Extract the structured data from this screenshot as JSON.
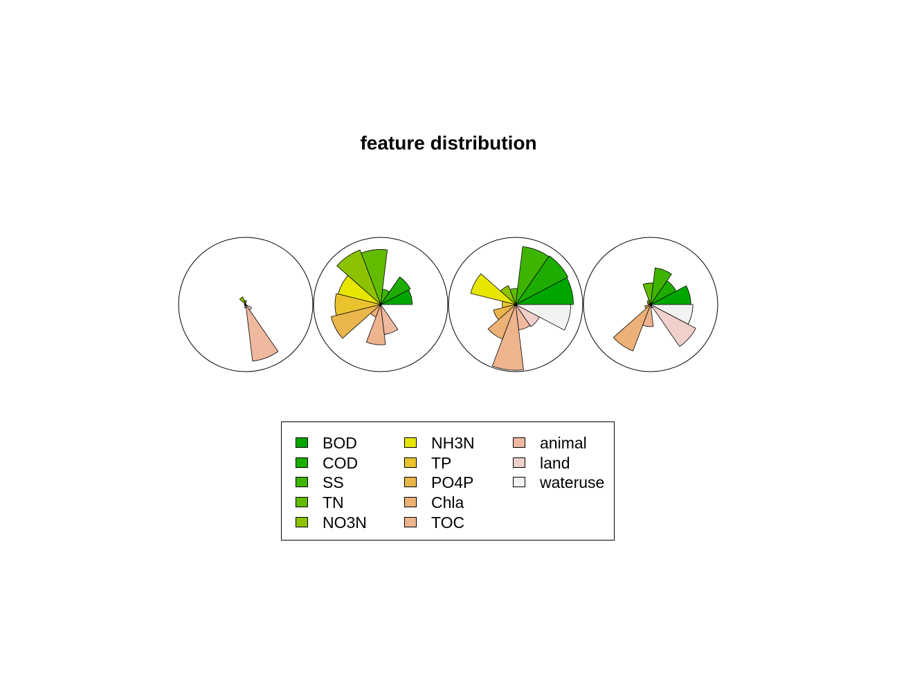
{
  "chart_data": {
    "type": "star_segment",
    "title": "feature distribution",
    "features": [
      "BOD",
      "COD",
      "SS",
      "TN",
      "NO3N",
      "NH3N",
      "TP",
      "PO4P",
      "Chla",
      "TOC",
      "animal",
      "land",
      "wateruse"
    ],
    "colors": [
      "#00A600",
      "#1DAD00",
      "#3EB400",
      "#63BB00",
      "#8CC200",
      "#E6E600",
      "#E8C32E",
      "#EAB54B",
      "#ECB176",
      "#EDB48E",
      "#EEB99F",
      "#F0D0CA",
      "#F2F2F2"
    ],
    "stars": [
      {
        "name": "",
        "values": [
          0,
          0,
          0,
          0.06,
          0.12,
          0.02,
          0,
          0.02,
          0,
          0.05,
          0.85,
          0.1,
          0
        ]
      },
      {
        "name": "",
        "values": [
          0.47,
          0.5,
          0.23,
          0.82,
          0.87,
          0.65,
          0.68,
          0.76,
          0.2,
          0.6,
          0.45,
          0,
          0
        ]
      },
      {
        "name": "",
        "values": [
          0.86,
          0.88,
          0.87,
          0.24,
          0.3,
          0.69,
          0.2,
          0.34,
          0.55,
          0.98,
          0.38,
          0.4,
          0.82
        ]
      },
      {
        "name": "",
        "values": [
          0.6,
          0.43,
          0.55,
          0.32,
          0.07,
          0.05,
          0.03,
          0.09,
          0.74,
          0.33,
          0.05,
          0.76,
          0.63
        ]
      }
    ],
    "legend": {
      "placement": "bottom",
      "columns": 3
    }
  }
}
